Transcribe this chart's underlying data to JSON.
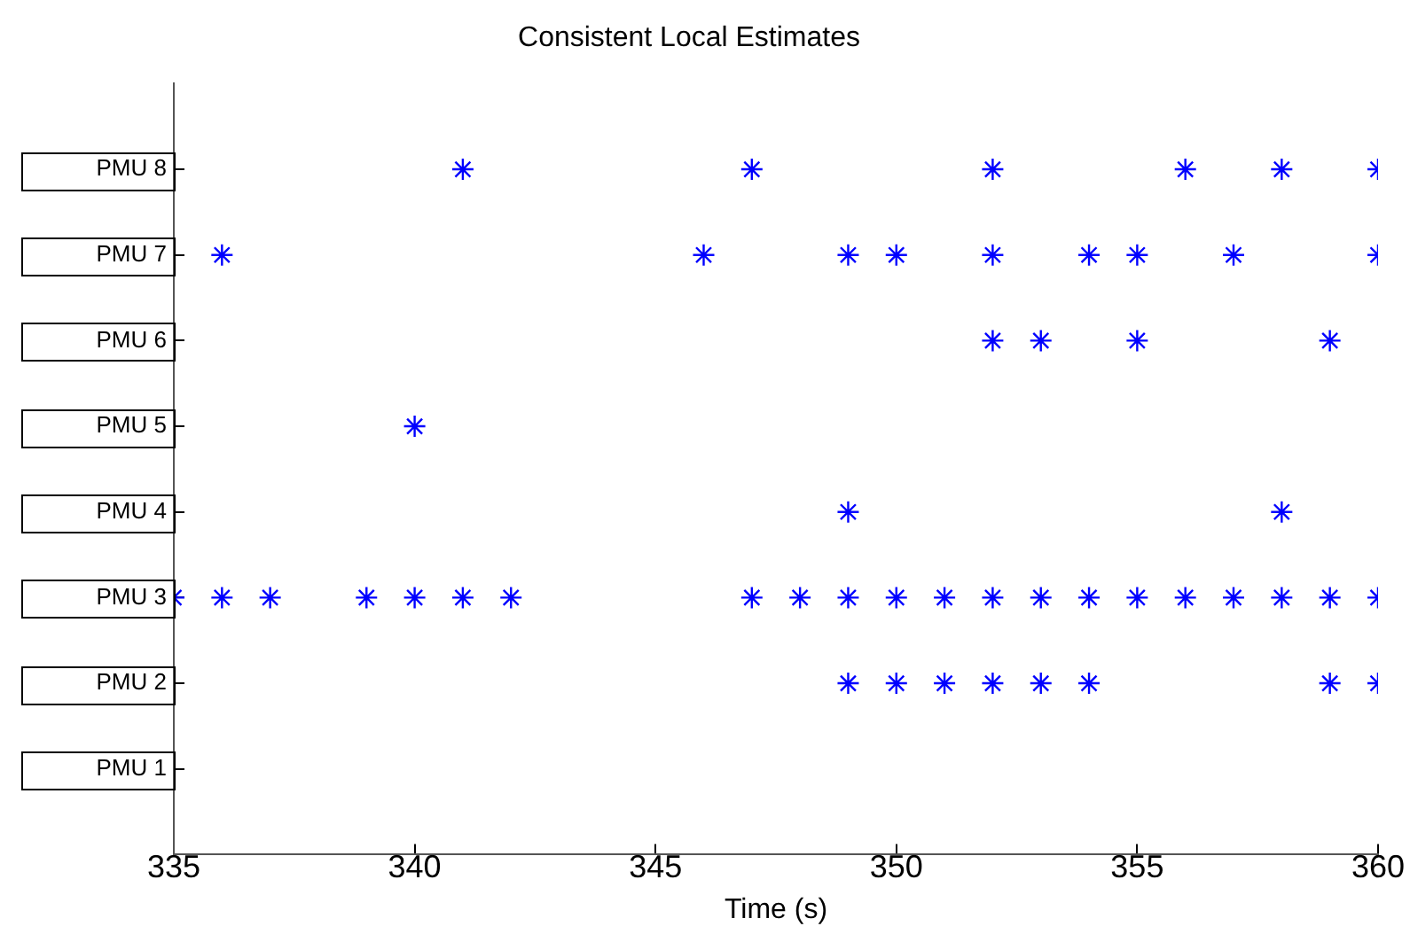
{
  "chart_data": {
    "type": "scatter",
    "title": "Consistent Local Estimates",
    "xlabel": "Time (s)",
    "marker": "cross",
    "grid": false,
    "legend": false,
    "orientation": "horizontal",
    "categories": [
      "PMU 8",
      "PMU 7",
      "PMU 6",
      "PMU 5",
      "PMU 4",
      "PMU 3",
      "PMU 2",
      "PMU 1"
    ],
    "xlim": [
      335,
      360
    ],
    "xticks": [
      335,
      340,
      345,
      350,
      355,
      360
    ],
    "series": [
      {
        "color": "#0000ff",
        "x": [
          "PMU 8",
          "PMU 8",
          "PMU 8",
          "PMU 8",
          "PMU 8",
          "PMU 8",
          "PMU 7",
          "PMU 7",
          "PMU 7",
          "PMU 7",
          "PMU 7",
          "PMU 7",
          "PMU 7",
          "PMU 7",
          "PMU 7",
          "PMU 6",
          "PMU 6",
          "PMU 6",
          "PMU 6",
          "PMU 5",
          "PMU 4",
          "PMU 4",
          "PMU 3",
          "PMU 3",
          "PMU 3",
          "PMU 3",
          "PMU 3",
          "PMU 3",
          "PMU 3",
          "PMU 3",
          "PMU 3",
          "PMU 3",
          "PMU 3",
          "PMU 3",
          "PMU 3",
          "PMU 3",
          "PMU 3",
          "PMU 3",
          "PMU 3",
          "PMU 3",
          "PMU 3",
          "PMU 3",
          "PMU 3",
          "PMU 2",
          "PMU 2",
          "PMU 2",
          "PMU 2",
          "PMU 2",
          "PMU 2",
          "PMU 2",
          "PMU 2"
        ],
        "values": [
          341,
          347,
          352,
          356,
          358,
          360,
          336,
          346,
          349,
          350,
          352,
          354,
          355,
          357,
          360,
          352,
          353,
          355,
          359,
          340,
          349,
          358,
          335,
          336,
          337,
          339,
          340,
          341,
          342,
          347,
          348,
          349,
          350,
          351,
          352,
          353,
          354,
          355,
          356,
          357,
          358,
          359,
          360,
          349,
          350,
          351,
          352,
          353,
          354,
          359,
          360
        ]
      }
    ]
  }
}
